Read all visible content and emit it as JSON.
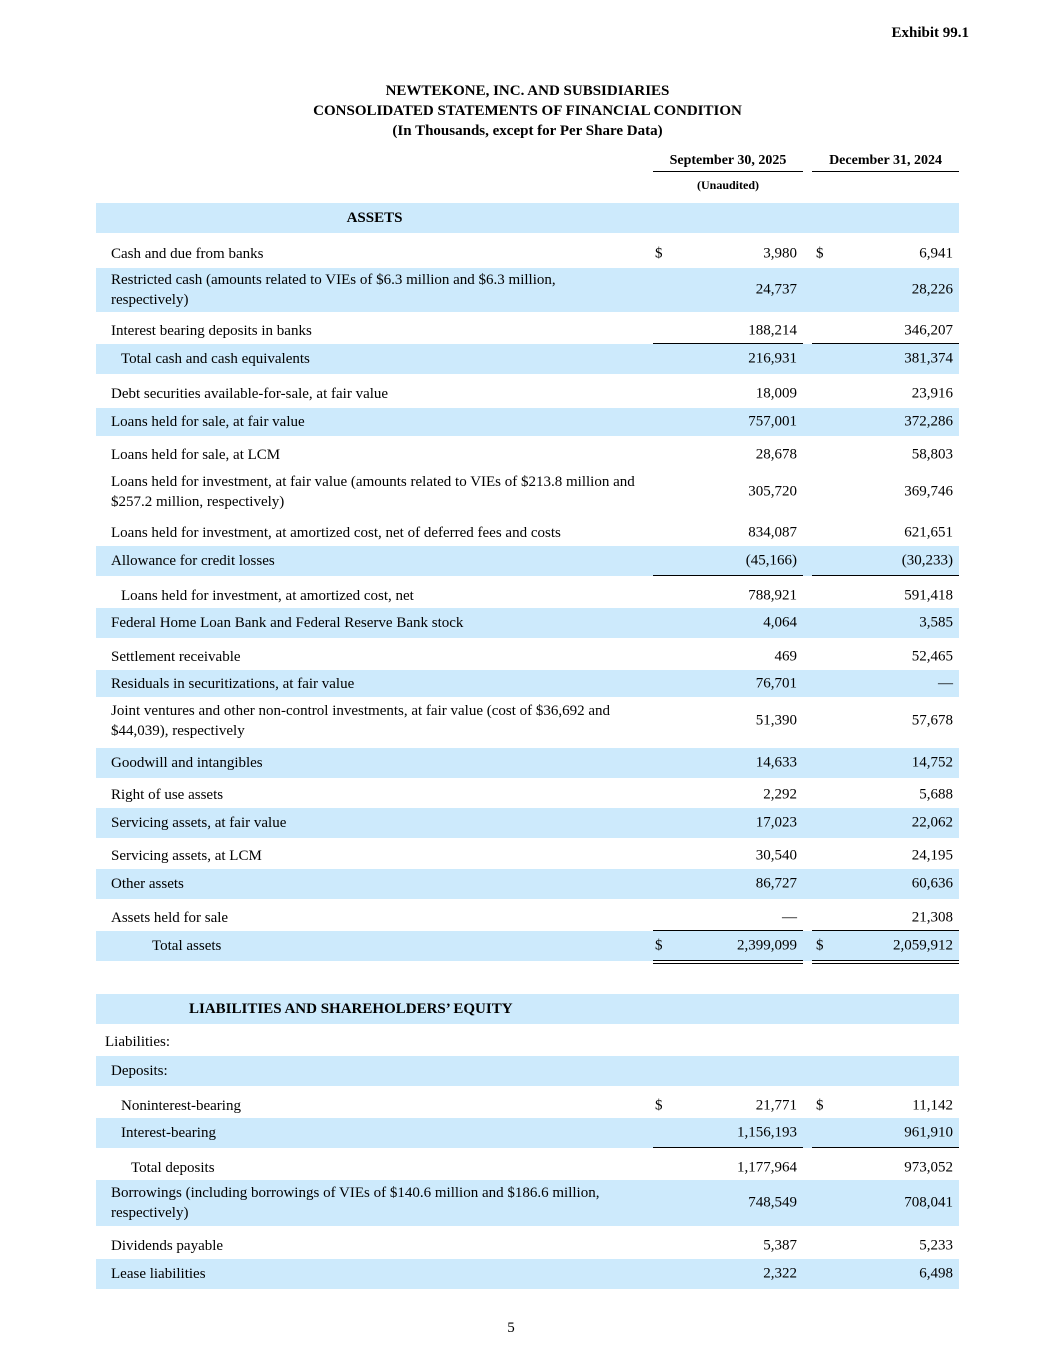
{
  "exhibit": "Exhibit 99.1",
  "title": {
    "company": "NEWTEKONE, INC. AND SUBSIDIARIES",
    "statement": "CONSOLIDATED STATEMENTS OF FINANCIAL CONDITION",
    "units": "(In Thousands, except for Per Share Data)"
  },
  "columns": {
    "col1": "September 30, 2025",
    "col1_note": "(Unaudited)",
    "col2": "December 31, 2024"
  },
  "rows": [
    {
      "label": "ASSETS",
      "v1": "",
      "v2": ""
    },
    {
      "label": "Cash and due from banks",
      "d1": "$",
      "v1": "3,980",
      "d2": "$",
      "v2": "6,941"
    },
    {
      "label": "Restricted cash (amounts related to VIEs of $6.3 million and $6.3 million, respectively)",
      "v1": "24,737",
      "v2": "28,226"
    },
    {
      "label": "Interest bearing deposits in banks",
      "v1": "188,214",
      "v2": "346,207"
    },
    {
      "label": "Total cash and cash equivalents",
      "v1": "216,931",
      "v2": "381,374"
    },
    {
      "label": "Debt securities available-for-sale, at fair value",
      "v1": "18,009",
      "v2": "23,916"
    },
    {
      "label": "Loans held for sale, at fair value",
      "v1": "757,001",
      "v2": "372,286"
    },
    {
      "label": "Loans held for sale, at LCM",
      "v1": "28,678",
      "v2": "58,803"
    },
    {
      "label": "Loans held for investment, at fair value (amounts related to VIEs of $213.8 million and $257.2 million, respectively)",
      "v1": "305,720",
      "v2": "369,746"
    },
    {
      "label": "Loans held for investment, at amortized cost, net of deferred fees and costs",
      "v1": "834,087",
      "v2": "621,651"
    },
    {
      "label": "Allowance for credit losses",
      "v1": "(45,166)",
      "v2": "(30,233)"
    },
    {
      "label": "Loans held for investment, at amortized cost, net",
      "v1": "788,921",
      "v2": "591,418"
    },
    {
      "label": "Federal Home Loan Bank and Federal Reserve Bank stock",
      "v1": "4,064",
      "v2": "3,585"
    },
    {
      "label": "Settlement receivable",
      "v1": "469",
      "v2": "52,465"
    },
    {
      "label": "Residuals in securitizations, at fair value",
      "v1": "76,701",
      "v2": "—"
    },
    {
      "label": "Joint ventures and other non-control investments, at fair value (cost of $36,692 and $44,039), respectively",
      "v1": "51,390",
      "v2": "57,678"
    },
    {
      "label": "Goodwill and intangibles",
      "v1": "14,633",
      "v2": "14,752"
    },
    {
      "label": "Right of use assets",
      "v1": "2,292",
      "v2": "5,688"
    },
    {
      "label": "Servicing assets, at fair value",
      "v1": "17,023",
      "v2": "22,062"
    },
    {
      "label": "Servicing assets, at LCM",
      "v1": "30,540",
      "v2": "24,195"
    },
    {
      "label": "Other assets",
      "v1": "86,727",
      "v2": "60,636"
    },
    {
      "label": "Assets held for sale",
      "v1": "—",
      "v2": "21,308"
    },
    {
      "label": "Total assets",
      "d1": "$",
      "v1": "2,399,099",
      "d2": "$",
      "v2": "2,059,912"
    },
    {
      "label": "LIABILITIES AND SHAREHOLDERS’ EQUITY",
      "v1": "",
      "v2": ""
    },
    {
      "label": "Liabilities:",
      "v1": "",
      "v2": ""
    },
    {
      "label": "Deposits:",
      "v1": "",
      "v2": ""
    },
    {
      "label": "Noninterest-bearing",
      "d1": "$",
      "v1": "21,771",
      "d2": "$",
      "v2": "11,142"
    },
    {
      "label": "Interest-bearing",
      "v1": "1,156,193",
      "v2": "961,910"
    },
    {
      "label": "Total deposits",
      "v1": "1,177,964",
      "v2": "973,052"
    },
    {
      "label": "Borrowings (including borrowings of VIEs of $140.6 million and $186.6 million, respectively)",
      "v1": "748,549",
      "v2": "708,041"
    },
    {
      "label": "Dividends payable",
      "v1": "5,387",
      "v2": "5,233"
    },
    {
      "label": "Lease liabilities",
      "v1": "2,322",
      "v2": "6,498"
    }
  ],
  "page_number": "5"
}
